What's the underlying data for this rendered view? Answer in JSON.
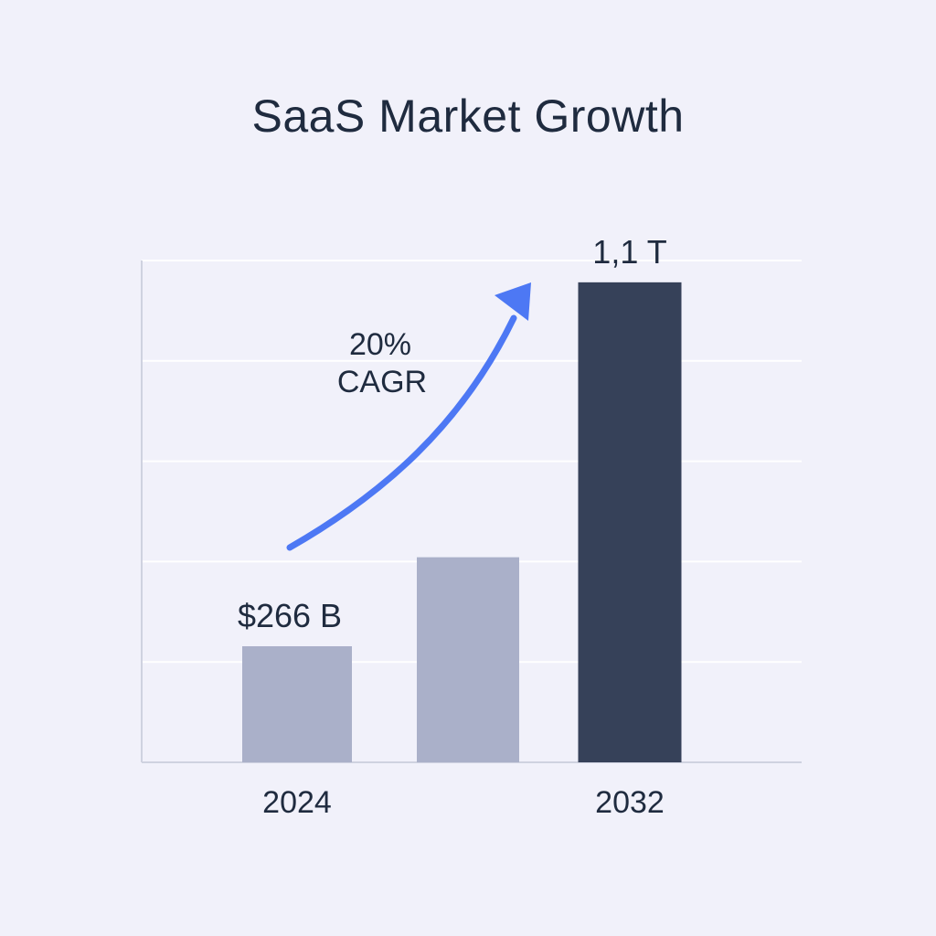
{
  "chart_data": {
    "type": "bar",
    "title": "SaaS Market Growth",
    "xlabel": "",
    "ylabel": "",
    "categories": [
      "2024",
      "",
      "2032"
    ],
    "values": [
      266,
      470,
      1100
    ],
    "value_unit": "B USD",
    "data_labels": [
      "$266 B",
      "",
      "1,1 T"
    ],
    "ylim": [
      0,
      1150
    ],
    "grid": true,
    "legend": "none",
    "annotation": {
      "text_lines": [
        "20%",
        "CAGR"
      ],
      "arrow": "up-right"
    },
    "colors": {
      "bar_default": "#aab0c9",
      "bar_highlight": "#364159",
      "arrow": "#4d78f4",
      "background": "#f1f1fa",
      "grid": "#ffffff"
    },
    "highlight_index": 2
  }
}
